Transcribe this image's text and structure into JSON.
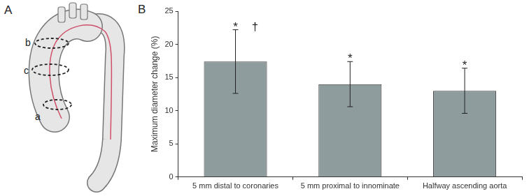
{
  "figure": {
    "panel_labels": [
      "A",
      "B"
    ],
    "diagram": {
      "section_labels": [
        "a",
        "b",
        "c"
      ]
    }
  },
  "chart_data": {
    "type": "bar",
    "y_label": "Maximum diameter change (%)",
    "categories": [
      "5 mm distal to coronaries",
      "5 mm proximal to innominate",
      "Halfway ascending aorta"
    ],
    "values": [
      17.4,
      14.0,
      13.0
    ],
    "errors": [
      4.8,
      3.4,
      3.4
    ],
    "annotations": [
      [
        "*",
        "†"
      ],
      [
        "*"
      ],
      [
        "*"
      ]
    ],
    "color": "#8f9c9e",
    "ylim": [
      0,
      25
    ],
    "yticks": [
      0,
      5,
      10,
      15,
      20,
      25
    ],
    "grid": false
  }
}
